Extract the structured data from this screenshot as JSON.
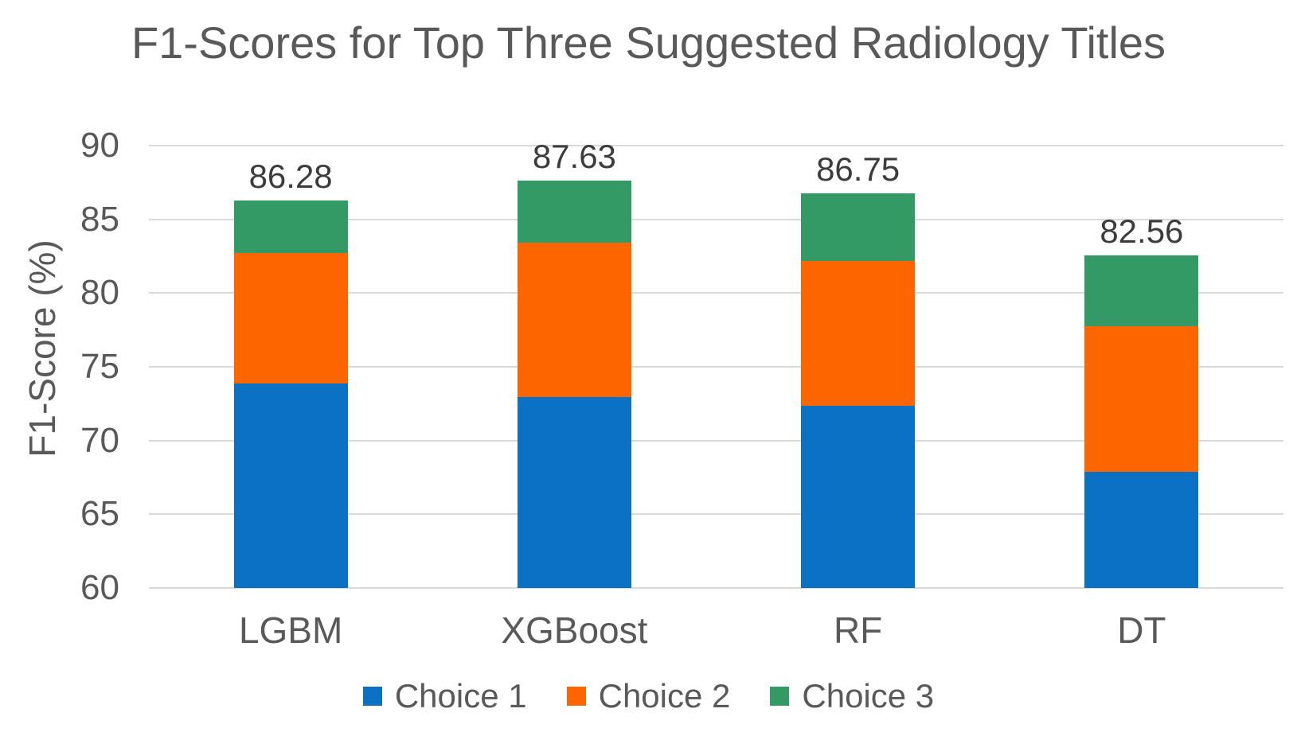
{
  "chart_data": {
    "type": "bar",
    "stacked": true,
    "title": "F1-Scores for Top Three Suggested Radiology Titles",
    "ylabel": "F1-Score (%)",
    "categories": [
      "LGBM",
      "XGBoost",
      "RF",
      "DT"
    ],
    "series": [
      {
        "name": "Choice 1",
        "color": "#0b72c3",
        "values": [
          73.85,
          72.95,
          72.37,
          67.89
        ]
      },
      {
        "name": "Choice 2",
        "color": "#fd6500",
        "values": [
          8.88,
          10.45,
          9.8,
          9.88
        ]
      },
      {
        "name": "Choice 3",
        "color": "#349a65",
        "values": [
          3.55,
          4.23,
          4.58,
          4.79
        ]
      }
    ],
    "totals": [
      86.28,
      87.63,
      86.75,
      82.56
    ],
    "total_labels": [
      "86.28",
      "87.63",
      "86.75",
      "82.56"
    ],
    "ylim": [
      60,
      90
    ],
    "ytick_step": 5,
    "yticks": [
      "90",
      "85",
      "80",
      "75",
      "70",
      "65",
      "60"
    ],
    "grid": true,
    "gridline_color": "#d9d9d9",
    "axis_text_color": "#595959",
    "data_label_color": "#3c3c3c",
    "legend_position": "bottom"
  }
}
